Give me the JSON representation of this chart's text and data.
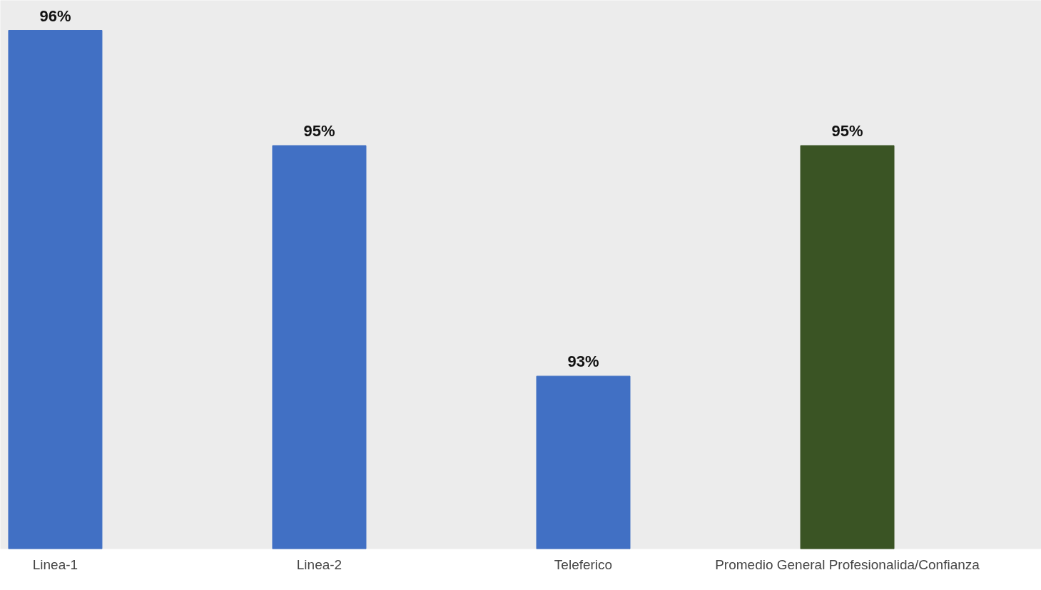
{
  "chart_data": {
    "type": "bar",
    "categories": [
      "Linea-1",
      "Linea-2",
      "Teleferico",
      "Promedio General Profesionalida/Confianza"
    ],
    "values": [
      96,
      95,
      93,
      95
    ],
    "colors": [
      "#4170c4",
      "#4170c4",
      "#4170c4",
      "#3a5424"
    ],
    "value_labels": [
      "96%",
      "95%",
      "93%",
      "95%"
    ],
    "ylim": [
      91.5,
      96.26
    ],
    "tick_labels": "x",
    "grid": false
  }
}
